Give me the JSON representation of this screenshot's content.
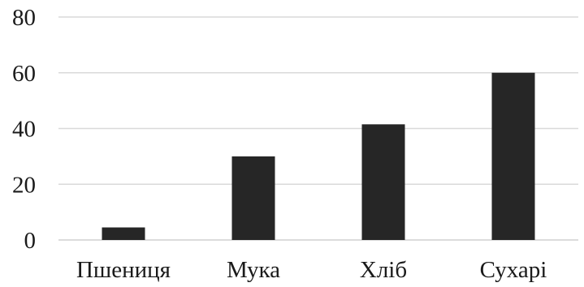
{
  "chart_data": {
    "type": "bar",
    "categories": [
      "Пшениця",
      "Мука",
      "Хліб",
      "Сухарі"
    ],
    "values": [
      4.5,
      30,
      41.5,
      60
    ],
    "ylim": [
      0,
      80
    ],
    "yticks": [
      0,
      20,
      40,
      60,
      80
    ],
    "grid": true,
    "legend": "none",
    "colors": {
      "bar": "#262626",
      "grid": "#d9d9d9",
      "text": "#1a1a1a"
    }
  }
}
